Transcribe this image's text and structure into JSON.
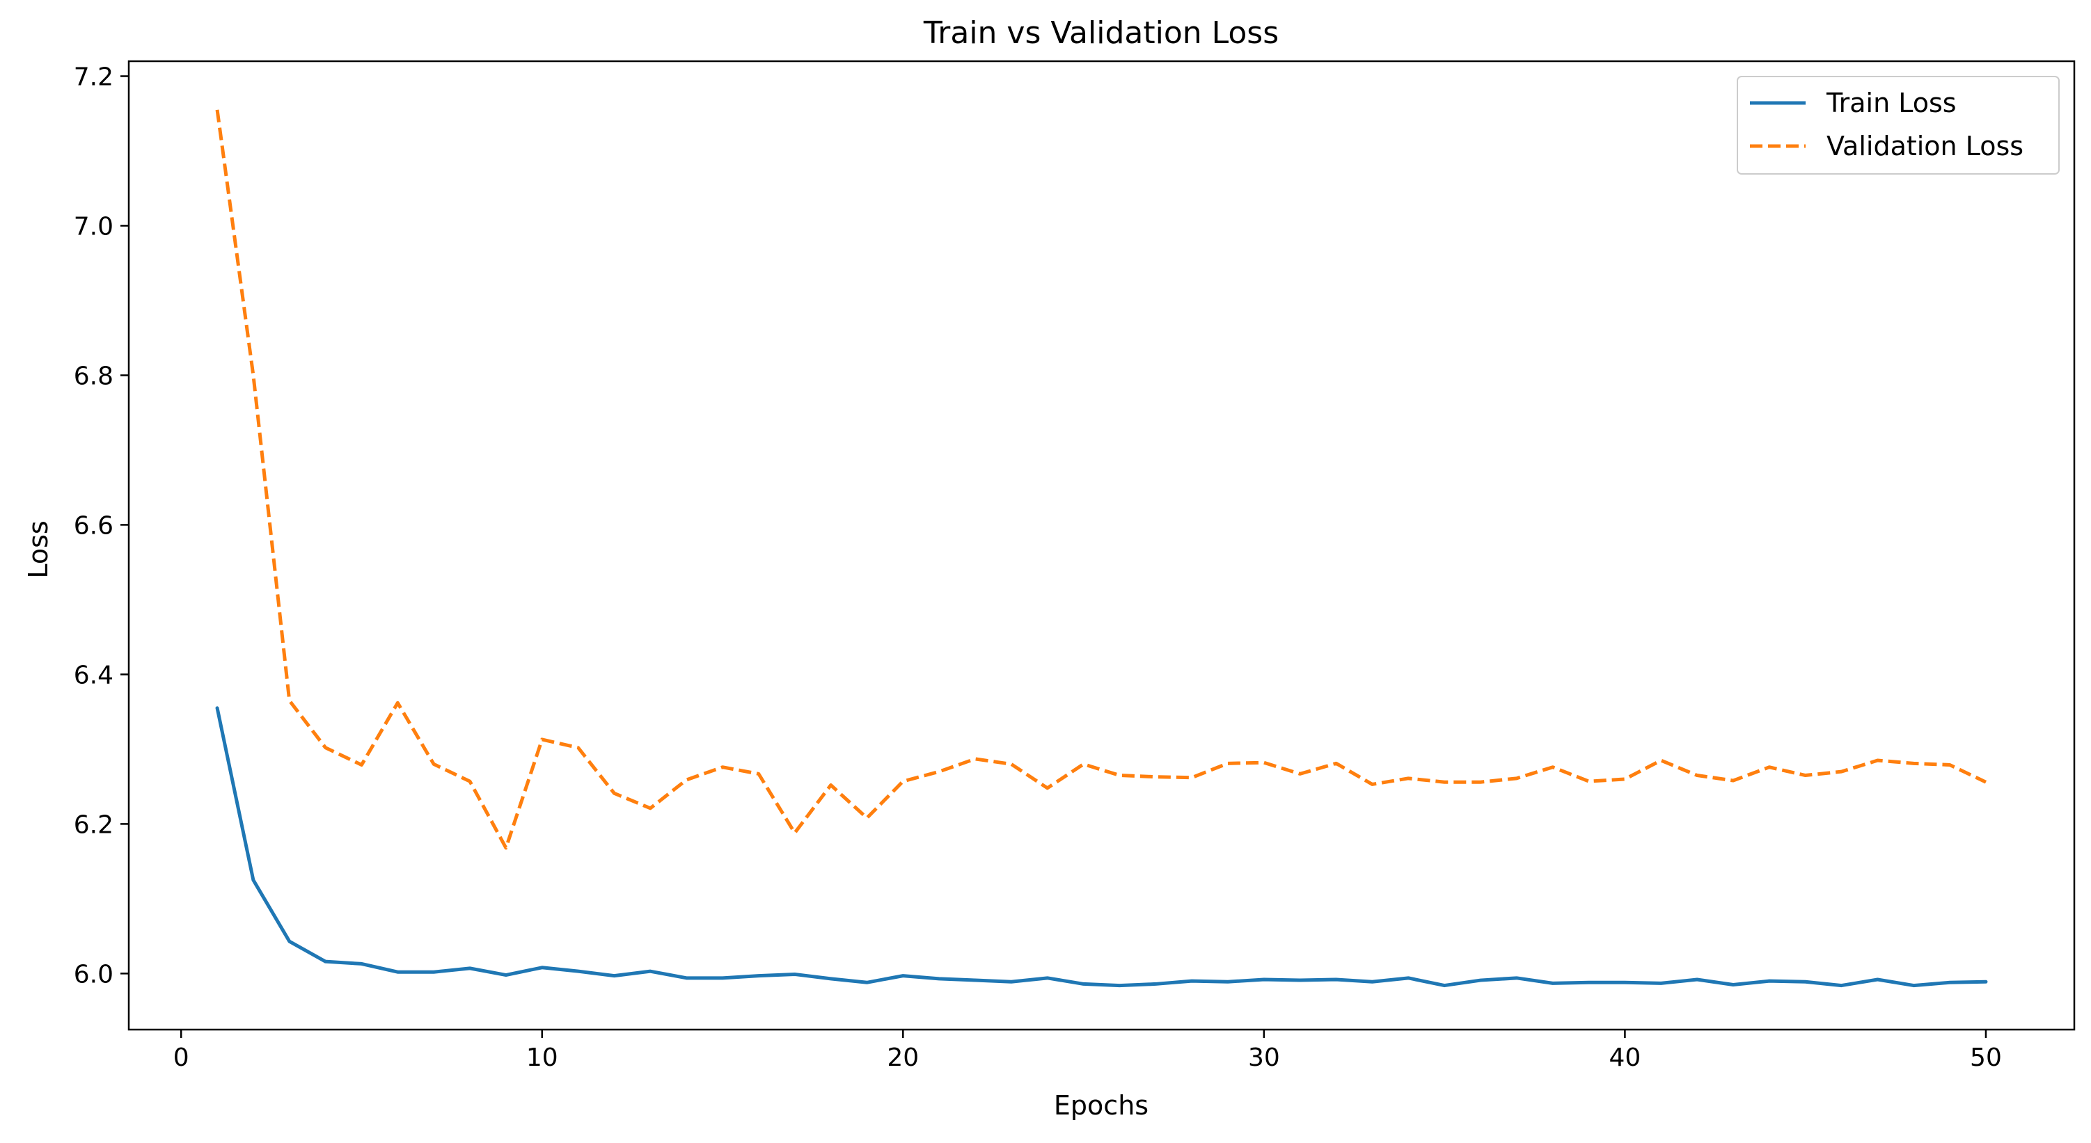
{
  "chart_data": {
    "type": "line",
    "title": "Train vs Validation Loss",
    "xlabel": "Epochs",
    "ylabel": "Loss",
    "xlim": [
      -1.45,
      52.45
    ],
    "ylim": [
      5.925,
      7.22
    ],
    "x_ticks": [
      0,
      10,
      20,
      30,
      40,
      50
    ],
    "y_ticks": [
      6.0,
      6.2,
      6.4,
      6.6,
      6.8,
      7.0,
      7.2
    ],
    "x_tick_labels": [
      "0",
      "10",
      "20",
      "30",
      "40",
      "50"
    ],
    "y_tick_labels": [
      "6.0",
      "6.2",
      "6.4",
      "6.6",
      "6.8",
      "7.0",
      "7.2"
    ],
    "grid": false,
    "legend_position": "top-right",
    "x": [
      1,
      2,
      3,
      4,
      5,
      6,
      7,
      8,
      9,
      10,
      11,
      12,
      13,
      14,
      15,
      16,
      17,
      18,
      19,
      20,
      21,
      22,
      23,
      24,
      25,
      26,
      27,
      28,
      29,
      30,
      31,
      32,
      33,
      34,
      35,
      36,
      37,
      38,
      39,
      40,
      41,
      42,
      43,
      44,
      45,
      46,
      47,
      48,
      49,
      50
    ],
    "series": [
      {
        "name": "Train Loss",
        "color": "#1f77b4",
        "style": "solid",
        "values": [
          6.355,
          6.125,
          6.043,
          6.016,
          6.013,
          6.002,
          6.002,
          6.007,
          5.998,
          6.008,
          6.003,
          5.997,
          6.003,
          5.994,
          5.994,
          5.997,
          5.999,
          5.993,
          5.988,
          5.997,
          5.993,
          5.991,
          5.989,
          5.994,
          5.986,
          5.984,
          5.986,
          5.99,
          5.989,
          5.992,
          5.991,
          5.992,
          5.989,
          5.994,
          5.984,
          5.991,
          5.994,
          5.987,
          5.988,
          5.988,
          5.987,
          5.992,
          5.985,
          5.99,
          5.989,
          5.984,
          5.992,
          5.984,
          5.988,
          5.989
        ]
      },
      {
        "name": "Validation Loss",
        "color": "#ff7f0e",
        "style": "dashed",
        "values": [
          7.155,
          6.8,
          6.365,
          6.302,
          6.279,
          6.362,
          6.28,
          6.257,
          6.168,
          6.313,
          6.302,
          6.241,
          6.221,
          6.259,
          6.276,
          6.267,
          6.188,
          6.252,
          6.208,
          6.257,
          6.27,
          6.287,
          6.28,
          6.248,
          6.28,
          6.265,
          6.263,
          6.262,
          6.281,
          6.282,
          6.267,
          6.281,
          6.253,
          6.261,
          6.256,
          6.256,
          6.261,
          6.276,
          6.257,
          6.26,
          6.285,
          6.265,
          6.258,
          6.276,
          6.265,
          6.27,
          6.285,
          6.281,
          6.279,
          6.256
        ]
      }
    ]
  }
}
